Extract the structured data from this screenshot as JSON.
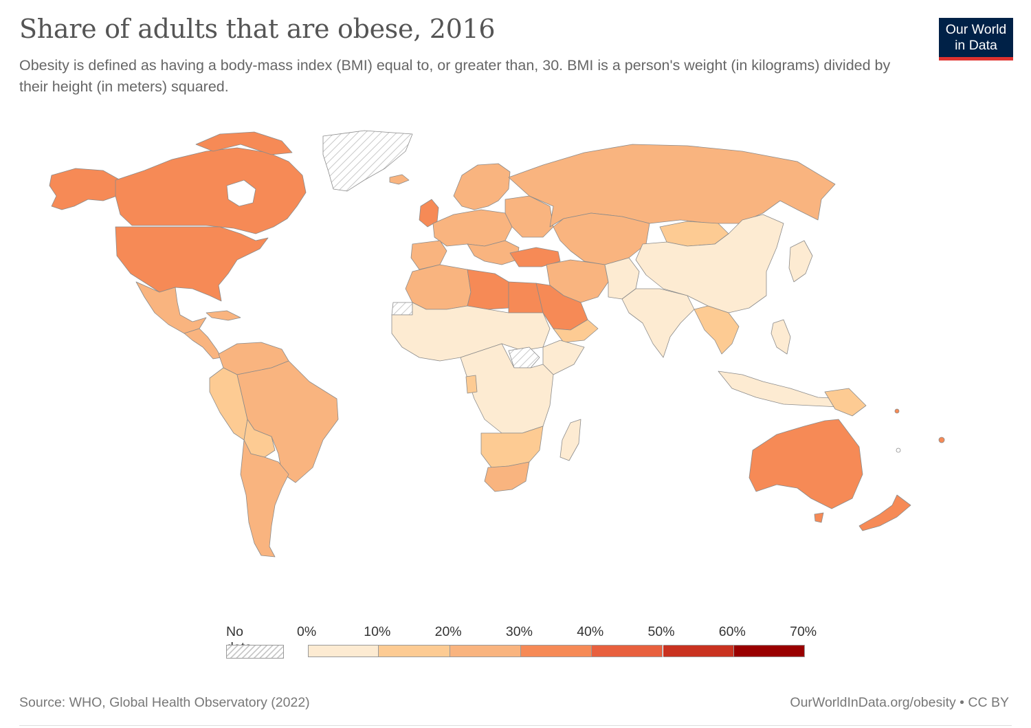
{
  "header": {
    "title": "Share of adults that are obese, 2016",
    "subtitle": "Obesity is defined as having a body-mass index (BMI) equal to, or greater than, 30. BMI is a person's weight (in kilograms) divided by their height (in meters) squared."
  },
  "logo": {
    "line1": "Our World",
    "line2": "in Data",
    "bg": "#002147",
    "accent": "#e0322f"
  },
  "legend": {
    "no_data_label": "No data",
    "ticks": [
      "0%",
      "10%",
      "20%",
      "30%",
      "40%",
      "50%",
      "60%",
      "70%"
    ],
    "bins": [
      {
        "range": "0-10%",
        "color": "#fdebd2"
      },
      {
        "range": "10-20%",
        "color": "#fdcb93"
      },
      {
        "range": "20-30%",
        "color": "#f9b47f"
      },
      {
        "range": "30-40%",
        "color": "#f68a56"
      },
      {
        "range": "40-50%",
        "color": "#e8603e"
      },
      {
        "range": "50-60%",
        "color": "#c93220"
      },
      {
        "range": "60-70%",
        "color": "#990000"
      }
    ]
  },
  "map": {
    "colors": {
      "no_data": "#ffffff",
      "border": "#8a8a8a",
      "bin0": "#fdebd2",
      "bin1": "#fdcb93",
      "bin2": "#f9b47f",
      "bin3": "#f68a56",
      "bin4": "#e8603e"
    }
  },
  "footer": {
    "source": "Source: WHO, Global Health Observatory (2022)",
    "url": "OurWorldInData.org/obesity • CC BY"
  }
}
